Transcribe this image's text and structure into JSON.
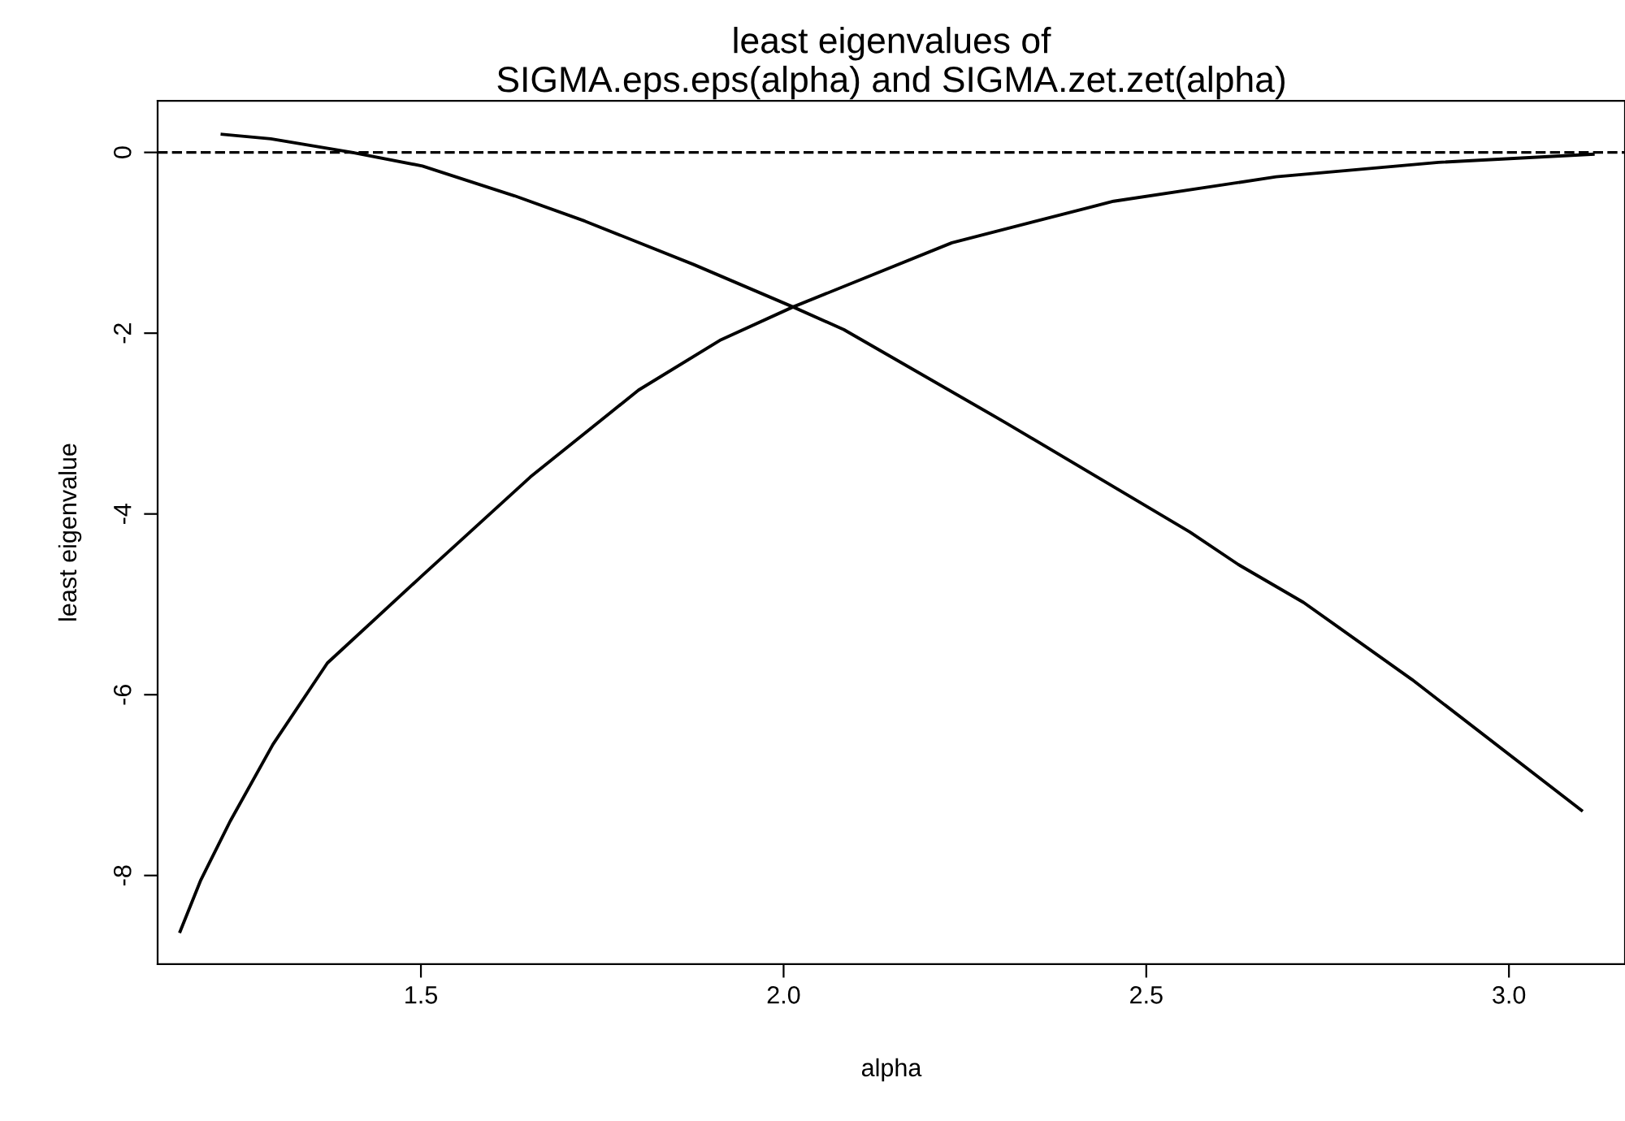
{
  "chart_data": {
    "type": "line",
    "title": "least eigenvalues of\nSIGMA.eps.eps(alpha) and SIGMA.zet.zet(alpha)",
    "xlabel": "alpha",
    "ylabel": "least eigenvalue",
    "xlim": [
      1.137,
      3.16
    ],
    "xticks": [
      1.5,
      {
        "value": 2.0,
        "label": "2.0"
      },
      2.5,
      {
        "value": 3.0,
        "label": "3.0"
      }
    ],
    "ylim": [
      -8.98,
      0.57
    ],
    "yticks": [
      0,
      -2,
      -4,
      -6,
      -8
    ],
    "grid": false,
    "legend": false,
    "marker": "none",
    "line_style": "solid",
    "series": [
      {
        "color": "#000000",
        "x": [
          1.226,
          1.293,
          1.405,
          1.502,
          1.629,
          1.726,
          1.876,
          2.013,
          2.083,
          2.306,
          2.56,
          2.627,
          2.717,
          2.866,
          3.1
        ],
        "values": [
          0.2,
          0.15,
          0.0,
          -0.15,
          -0.48,
          -0.76,
          -1.24,
          -1.71,
          -1.96,
          -2.99,
          -4.2,
          -4.56,
          -4.98,
          -5.83,
          -7.28
        ]
      },
      {
        "color": "#000000",
        "x": [
          1.168,
          1.196,
          1.237,
          1.296,
          1.371,
          1.502,
          1.569,
          1.651,
          1.8,
          1.912,
          2.013,
          2.232,
          2.455,
          2.679,
          2.903,
          3.116
        ],
        "values": [
          -8.62,
          -8.06,
          -7.4,
          -6.55,
          -5.65,
          -4.68,
          -4.19,
          -3.59,
          -2.63,
          -2.08,
          -1.71,
          -1.0,
          -0.54,
          -0.27,
          -0.11,
          -0.02
        ]
      }
    ],
    "ref_lines": [
      {
        "axis": "y",
        "value": 0,
        "line_style": "dashed",
        "color": "#000000"
      }
    ]
  }
}
